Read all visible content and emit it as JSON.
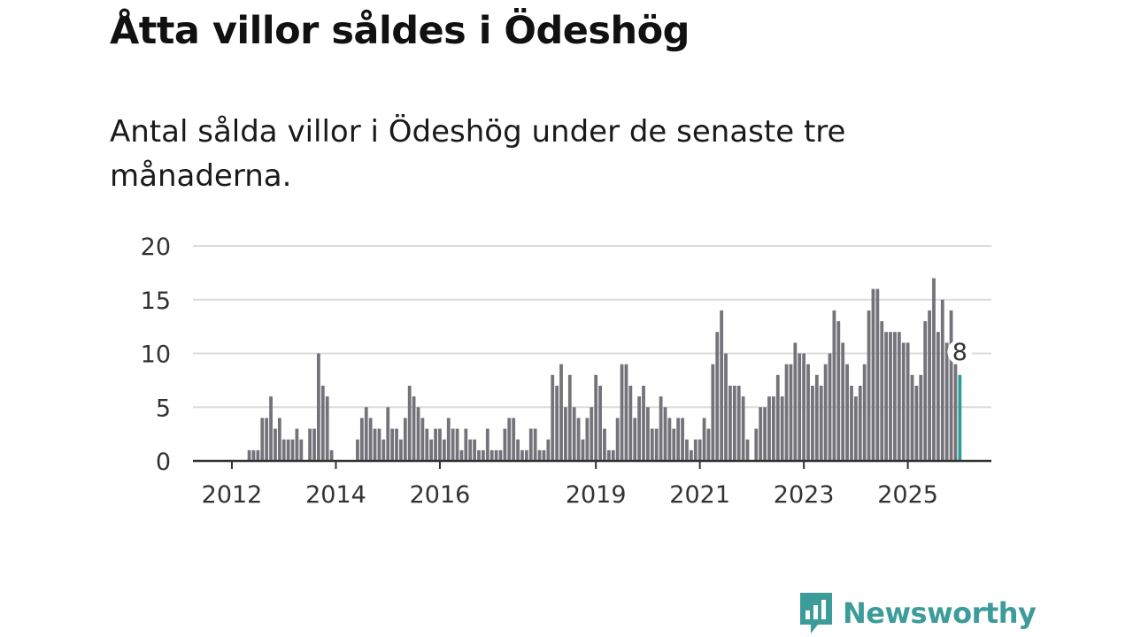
{
  "header": {
    "title": "Åtta villor såldes i Ödeshög",
    "subtitle": "Antal sålda villor i Ödeshög under de senaste tre månaderna."
  },
  "brand": {
    "name": "Newsworthy",
    "color": "#3c9c99",
    "icon": "bar-chart-speech-bubble-icon"
  },
  "chart_data": {
    "type": "bar",
    "title": "Åtta villor såldes i Ödeshög",
    "xlabel": "",
    "ylabel": "",
    "ylim": [
      0,
      20
    ],
    "yticks": [
      0,
      5,
      10,
      15,
      20
    ],
    "grid": true,
    "x_start": "2012-01",
    "xticks": [
      {
        "label": "2012",
        "index": 0
      },
      {
        "label": "2014",
        "index": 24
      },
      {
        "label": "2016",
        "index": 48
      },
      {
        "label": "2019",
        "index": 84
      },
      {
        "label": "2021",
        "index": 108
      },
      {
        "label": "2023",
        "index": 132
      },
      {
        "label": "2025",
        "index": 156
      }
    ],
    "bar_color": "#75737a",
    "highlight_color": "#2a9d97",
    "highlight_label": "8",
    "values": [
      0,
      0,
      0,
      0,
      1,
      1,
      1,
      4,
      4,
      6,
      3,
      4,
      2,
      2,
      2,
      3,
      2,
      0,
      3,
      3,
      10,
      7,
      6,
      1,
      0,
      0,
      0,
      0,
      0,
      2,
      4,
      5,
      4,
      3,
      3,
      2,
      5,
      3,
      3,
      2,
      4,
      7,
      6,
      5,
      4,
      3,
      2,
      3,
      3,
      2,
      4,
      3,
      3,
      1,
      3,
      2,
      2,
      1,
      1,
      3,
      1,
      1,
      1,
      3,
      4,
      4,
      2,
      1,
      1,
      3,
      3,
      1,
      1,
      2,
      8,
      7,
      9,
      5,
      8,
      5,
      4,
      2,
      4,
      5,
      8,
      7,
      3,
      1,
      1,
      4,
      9,
      9,
      7,
      4,
      6,
      7,
      5,
      3,
      3,
      6,
      5,
      4,
      3,
      4,
      4,
      2,
      1,
      2,
      2,
      4,
      3,
      9,
      12,
      14,
      10,
      7,
      7,
      7,
      6,
      2,
      0,
      3,
      5,
      5,
      6,
      6,
      8,
      6,
      9,
      9,
      11,
      10,
      10,
      9,
      7,
      8,
      7,
      9,
      10,
      14,
      13,
      11,
      9,
      7,
      6,
      7,
      9,
      14,
      16,
      16,
      13,
      12,
      12,
      12,
      12,
      11,
      11,
      8,
      7,
      8,
      13,
      14,
      17,
      12,
      15,
      11,
      14,
      9,
      8
    ]
  }
}
